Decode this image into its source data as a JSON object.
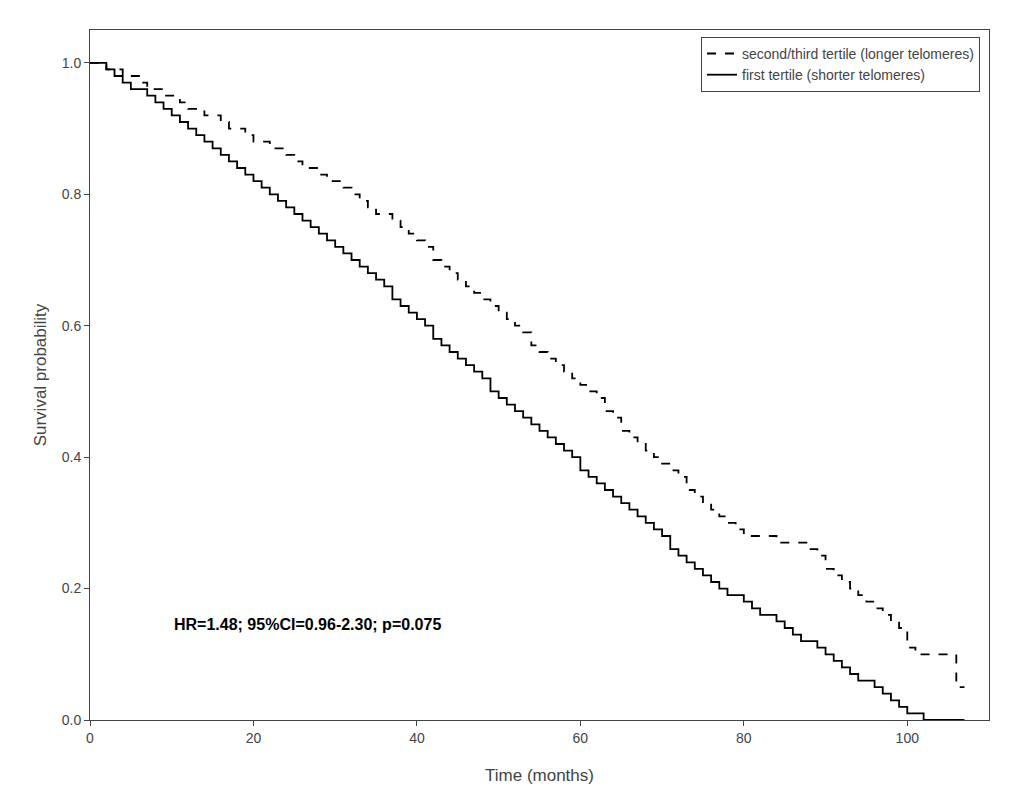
{
  "chart_data": {
    "type": "step",
    "xlabel": "Time (months)",
    "ylabel": "Survival probability",
    "xlim": [
      0,
      110
    ],
    "ylim": [
      0.0,
      1.05
    ],
    "xticks": [
      0,
      20,
      40,
      60,
      80,
      100
    ],
    "yticks": [
      {
        "value": 0.0,
        "label": "0.0"
      },
      0.2,
      0.4,
      0.6,
      0.8,
      {
        "value": 1.0,
        "label": "1.0"
      }
    ],
    "grid": false,
    "legend": "upper right",
    "annotations": [
      {
        "text": "HR=1.48; 95%CI=0.96-2.30; p=0.075",
        "x": 10,
        "y": 0.13
      }
    ],
    "series": [
      {
        "name": "first tertile (shorter telomeres)",
        "color": "#000000",
        "line_style": "solid",
        "x": [
          0,
          1,
          2,
          3,
          4,
          5,
          6,
          7,
          8,
          9,
          10,
          11,
          12,
          13,
          14,
          15,
          16,
          17,
          18,
          19,
          20,
          21,
          22,
          23,
          24,
          25,
          26,
          27,
          28,
          29,
          30,
          31,
          32,
          33,
          34,
          35,
          36,
          37,
          38,
          39,
          40,
          41,
          42,
          43,
          44,
          45,
          46,
          47,
          48,
          49,
          50,
          51,
          52,
          53,
          54,
          55,
          56,
          57,
          58,
          59,
          60,
          61,
          62,
          63,
          64,
          65,
          66,
          67,
          68,
          69,
          70,
          71,
          72,
          73,
          74,
          75,
          76,
          77,
          78,
          79,
          80,
          81,
          82,
          83,
          84,
          85,
          86,
          87,
          88,
          89,
          90,
          91,
          92,
          93,
          94,
          95,
          96,
          97,
          98,
          99,
          100,
          101,
          102,
          103,
          104,
          105,
          106,
          107
        ],
        "values": [
          1.0,
          1.0,
          0.99,
          0.98,
          0.97,
          0.96,
          0.96,
          0.95,
          0.94,
          0.93,
          0.92,
          0.91,
          0.9,
          0.89,
          0.88,
          0.87,
          0.86,
          0.85,
          0.84,
          0.83,
          0.82,
          0.81,
          0.8,
          0.79,
          0.78,
          0.77,
          0.76,
          0.75,
          0.74,
          0.73,
          0.72,
          0.71,
          0.7,
          0.69,
          0.68,
          0.67,
          0.66,
          0.64,
          0.63,
          0.62,
          0.61,
          0.6,
          0.58,
          0.57,
          0.56,
          0.55,
          0.54,
          0.53,
          0.52,
          0.5,
          0.49,
          0.48,
          0.47,
          0.46,
          0.45,
          0.44,
          0.43,
          0.42,
          0.41,
          0.4,
          0.38,
          0.37,
          0.36,
          0.35,
          0.34,
          0.33,
          0.32,
          0.31,
          0.3,
          0.29,
          0.28,
          0.26,
          0.25,
          0.24,
          0.23,
          0.22,
          0.21,
          0.2,
          0.19,
          0.19,
          0.18,
          0.17,
          0.16,
          0.16,
          0.15,
          0.14,
          0.13,
          0.12,
          0.12,
          0.11,
          0.1,
          0.09,
          0.08,
          0.07,
          0.06,
          0.06,
          0.05,
          0.04,
          0.03,
          0.02,
          0.01,
          0.01,
          0.0,
          0.0,
          0.0,
          0.0,
          0.0,
          0.0
        ]
      },
      {
        "name": "second/third tertile (longer telomeres)",
        "color": "#000000",
        "line_style": "dashed",
        "x": [
          0,
          1,
          2,
          3,
          4,
          5,
          6,
          7,
          8,
          9,
          10,
          11,
          12,
          13,
          14,
          15,
          16,
          17,
          18,
          19,
          20,
          21,
          22,
          23,
          24,
          25,
          26,
          27,
          28,
          29,
          30,
          31,
          32,
          33,
          34,
          35,
          36,
          37,
          38,
          39,
          40,
          41,
          42,
          43,
          44,
          45,
          46,
          47,
          48,
          49,
          50,
          51,
          52,
          53,
          54,
          55,
          56,
          57,
          58,
          59,
          60,
          61,
          62,
          63,
          64,
          65,
          66,
          67,
          68,
          69,
          70,
          71,
          72,
          73,
          74,
          75,
          76,
          77,
          78,
          79,
          80,
          81,
          82,
          83,
          84,
          85,
          86,
          87,
          88,
          89,
          90,
          91,
          92,
          93,
          94,
          95,
          96,
          97,
          98,
          99,
          100,
          101,
          102,
          103,
          104,
          105,
          106,
          107
        ],
        "values": [
          1.0,
          1.0,
          0.99,
          0.99,
          0.98,
          0.98,
          0.97,
          0.96,
          0.96,
          0.95,
          0.95,
          0.94,
          0.93,
          0.93,
          0.92,
          0.92,
          0.91,
          0.9,
          0.9,
          0.89,
          0.88,
          0.88,
          0.87,
          0.87,
          0.86,
          0.85,
          0.84,
          0.84,
          0.83,
          0.82,
          0.82,
          0.81,
          0.8,
          0.79,
          0.78,
          0.77,
          0.77,
          0.76,
          0.75,
          0.74,
          0.73,
          0.72,
          0.7,
          0.69,
          0.68,
          0.67,
          0.66,
          0.65,
          0.64,
          0.63,
          0.62,
          0.61,
          0.6,
          0.59,
          0.57,
          0.56,
          0.55,
          0.54,
          0.53,
          0.52,
          0.51,
          0.5,
          0.49,
          0.47,
          0.46,
          0.44,
          0.43,
          0.42,
          0.41,
          0.4,
          0.39,
          0.38,
          0.37,
          0.35,
          0.34,
          0.33,
          0.32,
          0.31,
          0.3,
          0.29,
          0.28,
          0.28,
          0.28,
          0.28,
          0.27,
          0.27,
          0.27,
          0.27,
          0.26,
          0.25,
          0.23,
          0.22,
          0.21,
          0.2,
          0.19,
          0.18,
          0.17,
          0.16,
          0.15,
          0.14,
          0.11,
          0.1,
          0.1,
          0.1,
          0.1,
          0.1,
          0.05,
          0.05
        ]
      }
    ]
  }
}
